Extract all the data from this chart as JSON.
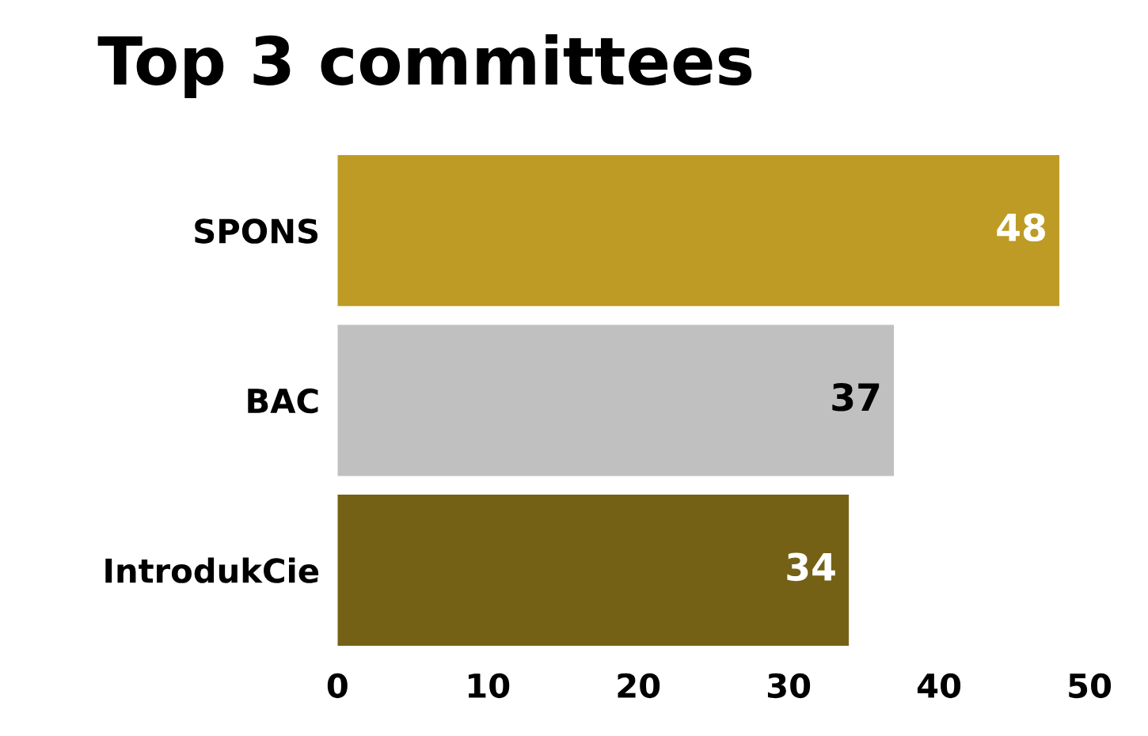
{
  "chart_data": {
    "type": "bar",
    "orientation": "horizontal",
    "title": "Top 3 committees",
    "categories": [
      "SPONS",
      "BAC",
      "IntrodukCie"
    ],
    "values": [
      48,
      37,
      34
    ],
    "colors": [
      "#bd9b24",
      "#c0c0c0",
      "#756116"
    ],
    "xlim": [
      0,
      50
    ],
    "xticks": [
      0,
      10,
      20,
      30,
      40,
      50
    ],
    "grid": false,
    "data_labels": true
  }
}
